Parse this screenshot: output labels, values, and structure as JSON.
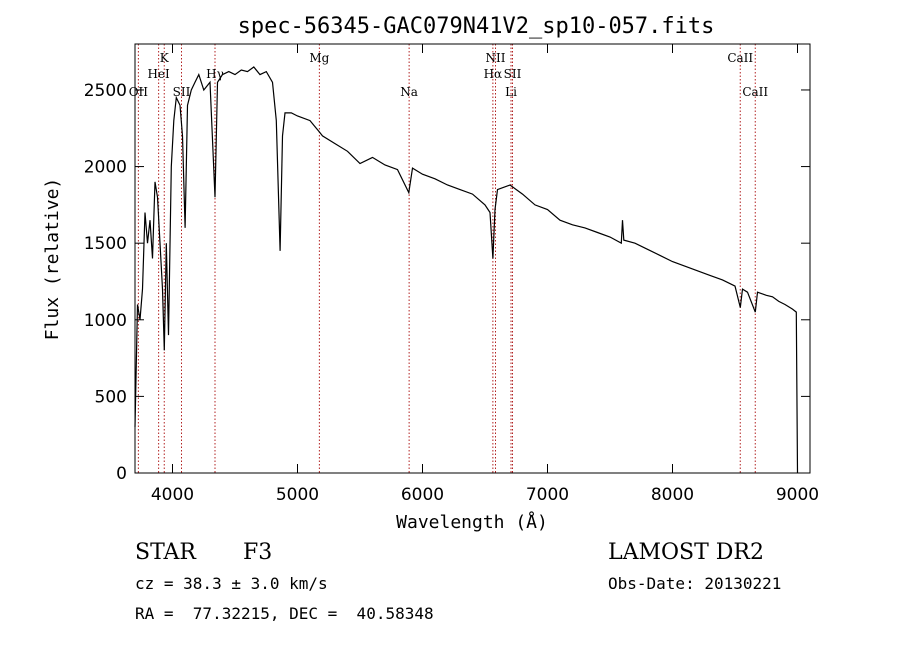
{
  "chart_data": {
    "type": "line",
    "title": "spec-56345-GAC079N41V2_sp10-057.fits",
    "xlabel": "Wavelength (Å)",
    "ylabel": "Flux (relative)",
    "xlim": [
      3700,
      9100
    ],
    "ylim": [
      0,
      2800
    ],
    "xticks": [
      4000,
      5000,
      6000,
      7000,
      8000,
      9000
    ],
    "yticks": [
      0,
      500,
      1000,
      1500,
      2000,
      2500
    ],
    "grid": false,
    "line_color": "#000000",
    "marker_color": "#b22222",
    "series": [
      {
        "x": [
          3700,
          3720,
          3740,
          3760,
          3780,
          3800,
          3820,
          3840,
          3860,
          3880,
          3900,
          3920,
          3934,
          3950,
          3968,
          3990,
          4010,
          4030,
          4060,
          4080,
          4101,
          4120,
          4150,
          4180,
          4210,
          4250,
          4300,
          4340,
          4360,
          4400,
          4450,
          4500,
          4550,
          4600,
          4650,
          4700,
          4750,
          4800,
          4830,
          4861,
          4880,
          4900,
          4950,
          5000,
          5100,
          5170,
          5200,
          5300,
          5400,
          5500,
          5600,
          5700,
          5800,
          5890,
          5920,
          6000,
          6100,
          6200,
          6300,
          6400,
          6500,
          6540,
          6563,
          6580,
          6600,
          6700,
          6800,
          6900,
          7000,
          7100,
          7200,
          7300,
          7400,
          7500,
          7590,
          7600,
          7610,
          7700,
          7800,
          7900,
          8000,
          8100,
          8200,
          8300,
          8400,
          8500,
          8542,
          8560,
          8600,
          8662,
          8680,
          8750,
          8800,
          8850,
          8900,
          8960,
          8990,
          9000
        ],
        "y": [
          300,
          1100,
          1000,
          1200,
          1700,
          1500,
          1650,
          1400,
          1900,
          1800,
          1500,
          1200,
          800,
          1500,
          900,
          2000,
          2300,
          2450,
          2400,
          2200,
          1600,
          2400,
          2500,
          2550,
          2600,
          2500,
          2550,
          1800,
          2550,
          2600,
          2620,
          2600,
          2630,
          2620,
          2650,
          2600,
          2620,
          2550,
          2300,
          1450,
          2200,
          2350,
          2350,
          2330,
          2300,
          2230,
          2200,
          2150,
          2100,
          2020,
          2060,
          2010,
          1980,
          1830,
          1990,
          1950,
          1920,
          1880,
          1850,
          1820,
          1750,
          1700,
          1400,
          1720,
          1850,
          1880,
          1820,
          1750,
          1720,
          1650,
          1620,
          1600,
          1570,
          1540,
          1500,
          1650,
          1520,
          1500,
          1460,
          1420,
          1380,
          1350,
          1320,
          1290,
          1260,
          1220,
          1080,
          1200,
          1180,
          1050,
          1180,
          1160,
          1150,
          1120,
          1100,
          1070,
          1050,
          0
        ]
      }
    ],
    "lines": [
      {
        "label": "OII",
        "x": 3727,
        "row": 3
      },
      {
        "label": "K",
        "x": 3934,
        "row": 1
      },
      {
        "label": "HeI",
        "x": 3889,
        "row": 2
      },
      {
        "label": "SII",
        "x": 4072,
        "row": 3
      },
      {
        "label": "Hγ",
        "x": 4340,
        "row": 2
      },
      {
        "label": "Mg",
        "x": 5175,
        "row": 1
      },
      {
        "label": "Na",
        "x": 5893,
        "row": 3
      },
      {
        "label": "NII",
        "x": 6584,
        "row": 1
      },
      {
        "label": "Hα",
        "x": 6563,
        "row": 2
      },
      {
        "label": "SII",
        "x": 6720,
        "row": 2
      },
      {
        "label": "Li",
        "x": 6708,
        "row": 3
      },
      {
        "label": "CaII",
        "x": 8542,
        "row": 1
      },
      {
        "label": "CaII",
        "x": 8662,
        "row": 3
      }
    ]
  },
  "info": {
    "type": "STAR",
    "subclass": "F3",
    "survey": "LAMOST DR2",
    "cz": "cz = 38.3 ± 3.0 km/s",
    "obs_date": "Obs-Date: 20130221",
    "radec": "RA =  77.32215, DEC =  40.58348"
  }
}
